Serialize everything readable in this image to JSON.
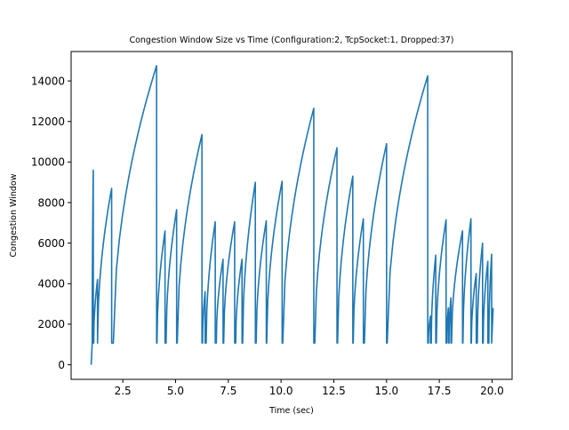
{
  "chart_data": {
    "type": "line",
    "title": "Congestion Window Size vs Time (Configuration:2, TcpSocket:1, Dropped:37)",
    "xlabel": "Time (sec)",
    "ylabel": "Congestion Window",
    "xlim": [
      0.05,
      20.95
    ],
    "ylim": [
      -720,
      15450
    ],
    "x_ticks": [
      2.5,
      5.0,
      7.5,
      10.0,
      12.5,
      15.0,
      17.5,
      20.0
    ],
    "x_tick_labels": [
      "2.5",
      "5.0",
      "7.5",
      "10.0",
      "12.5",
      "15.0",
      "17.5",
      "20.0"
    ],
    "y_ticks": [
      0,
      2000,
      4000,
      6000,
      8000,
      10000,
      12000,
      14000
    ],
    "y_tick_labels": [
      "0",
      "2000",
      "4000",
      "6000",
      "8000",
      "10000",
      "12000",
      "14000"
    ],
    "grid": false,
    "legend": null,
    "series_color": "#1f77b4",
    "min_cwnd": 1072,
    "start": [
      1.0,
      0
    ],
    "cycles": [
      [
        1.05,
        1.1,
        9600
      ],
      [
        1.12,
        1.3,
        4200
      ],
      [
        1.3,
        1.97,
        8700
      ],
      [
        2.05,
        4.1,
        14750
      ],
      [
        4.12,
        4.5,
        6600
      ],
      [
        4.55,
        5.05,
        7650
      ],
      [
        5.08,
        6.25,
        11350
      ],
      [
        6.28,
        6.4,
        3600
      ],
      [
        6.45,
        6.88,
        7050
      ],
      [
        6.93,
        7.25,
        5200
      ],
      [
        7.28,
        7.8,
        7050
      ],
      [
        7.85,
        8.15,
        5200
      ],
      [
        8.18,
        8.78,
        9000
      ],
      [
        8.82,
        9.3,
        7100
      ],
      [
        9.32,
        10.05,
        9050
      ],
      [
        10.08,
        11.55,
        12650
      ],
      [
        11.6,
        12.65,
        10700
      ],
      [
        12.68,
        13.4,
        9300
      ],
      [
        13.42,
        13.9,
        7200
      ],
      [
        13.95,
        15.0,
        10900
      ],
      [
        15.03,
        16.95,
        14250
      ],
      [
        16.98,
        17.08,
        2400
      ],
      [
        17.12,
        17.33,
        5400
      ],
      [
        17.36,
        17.82,
        7150
      ],
      [
        17.85,
        17.93,
        2800
      ],
      [
        17.96,
        18.05,
        3300
      ],
      [
        18.08,
        18.6,
        6600
      ],
      [
        18.62,
        19.0,
        7200
      ],
      [
        19.02,
        19.25,
        4500
      ],
      [
        19.3,
        19.55,
        6000
      ],
      [
        19.58,
        19.8,
        5100
      ],
      [
        19.85,
        19.98,
        5450
      ]
    ],
    "end": [
      20.05,
      2800
    ]
  }
}
